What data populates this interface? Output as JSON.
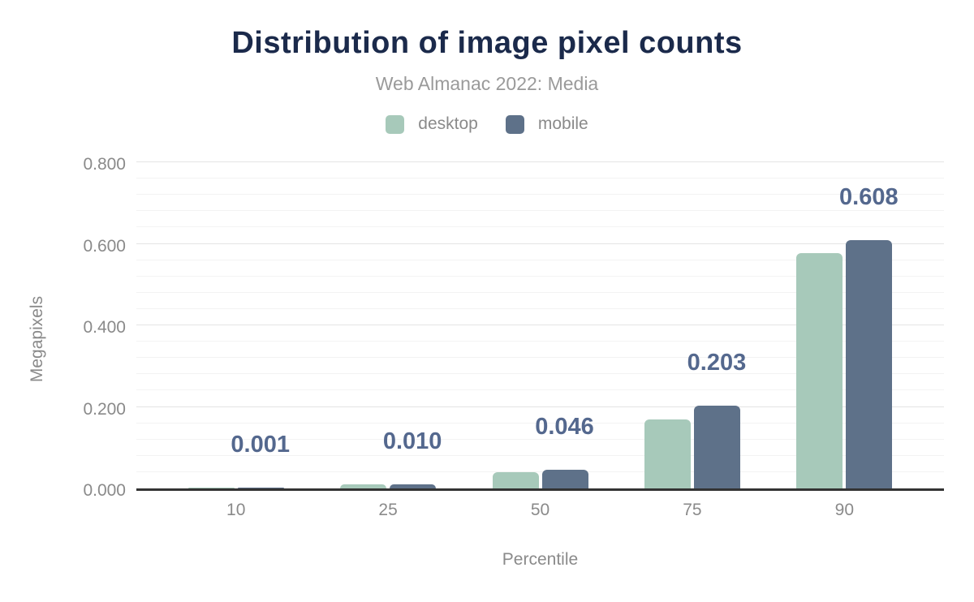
{
  "chart_data": {
    "type": "bar",
    "title": "Distribution of image pixel counts",
    "subtitle": "Web Almanac 2022: Media",
    "xlabel": "Percentile",
    "ylabel": "Megapixels",
    "categories": [
      "10",
      "25",
      "50",
      "75",
      "90"
    ],
    "series": [
      {
        "name": "desktop",
        "color": "#a7c9ba",
        "values": [
          0.001,
          0.009,
          0.039,
          0.17,
          0.577
        ]
      },
      {
        "name": "mobile",
        "color": "#5e7189",
        "values": [
          0.001,
          0.01,
          0.046,
          0.203,
          0.608
        ]
      }
    ],
    "data_labels": {
      "series": "mobile",
      "values": [
        "0.001",
        "0.010",
        "0.046",
        "0.203",
        "0.608"
      ]
    },
    "ylim": [
      0,
      0.8
    ],
    "y_ticks": [
      {
        "value": 0.0,
        "label": "0.000"
      },
      {
        "value": 0.2,
        "label": "0.200"
      },
      {
        "value": 0.4,
        "label": "0.400"
      },
      {
        "value": 0.6,
        "label": "0.600"
      },
      {
        "value": 0.8,
        "label": "0.800"
      }
    ],
    "y_minor_step": 0.04,
    "grid": true,
    "legend_position": "top"
  },
  "colors": {
    "title": "#1b2a4b",
    "subtitle": "#9a9a9a",
    "axis_text": "#8a8a8a",
    "data_label": "#54688e",
    "grid_major": "#e4e4e4",
    "grid_minor": "#f3f3f3",
    "axis_line": "#333333"
  }
}
